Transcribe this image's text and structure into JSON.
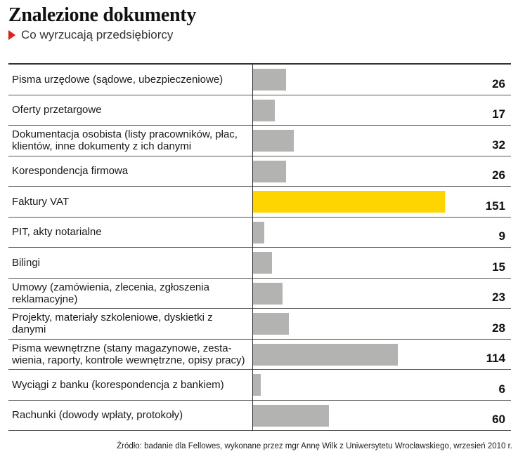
{
  "title": "Znalezione dokumenty",
  "subtitle": "Co wyrzucają przedsiębiorcy",
  "source": "Źródło: badanie dla Fellowes, wykonane przez mgr Annę Wilk z Uniwersytetu Wrocławskiego, wrzesień 2010 r.",
  "colors": {
    "bar": "#b3b3b1",
    "highlight": "#ffd500",
    "marker": "#e0201b"
  },
  "chart_data": {
    "type": "bar",
    "orientation": "horizontal",
    "title": "Znalezione dokumenty",
    "subtitle": "Co wyrzucają przedsiębiorcy",
    "categories": [
      "Pisma urzędowe (sądowe, ubezpieczeniowe)",
      "Oferty przetargowe",
      "Dokumentacja osobista (listy pracowników, płac, klientów, inne dokumenty z ich danymi",
      "Korespondencja firmowa",
      "Faktury VAT",
      "PIT, akty notarialne",
      "Bilingi",
      "Umowy (zamówienia, zlecenia, zgłoszenia reklamacyjne)",
      "Projekty, materiały szkoleniowe, dyskietki z danymi",
      "Pisma wewnętrzne (stany magazynowe, zestawienia, raporty, kontrole wewnętrzne, opisy pracy)",
      "Wyciągi z banku (korespondencja z bankiem)",
      "Rachunki (dowody wpłaty, protokoły)"
    ],
    "values": [
      26,
      17,
      32,
      26,
      151,
      9,
      15,
      23,
      28,
      114,
      6,
      60
    ],
    "highlight_index": 4,
    "xlim": [
      0,
      151
    ]
  },
  "rows": [
    {
      "label": "Pisma urzędowe (sądowe, ubezpieczeniowe)",
      "value": "26"
    },
    {
      "label": "Oferty przetargowe",
      "value": "17"
    },
    {
      "label": "Dokumentacja osobista (listy pracowników, płac, klientów, inne dokumenty z ich danymi",
      "value": "32"
    },
    {
      "label": "Korespondencja firmowa",
      "value": "26"
    },
    {
      "label": "Faktury VAT",
      "value": "151"
    },
    {
      "label": "PIT, akty notarialne",
      "value": "9"
    },
    {
      "label": "Bilingi",
      "value": "15"
    },
    {
      "label": "Umowy (zamówienia, zlecenia, zgłoszenia reklamacyjne)",
      "value": "23"
    },
    {
      "label": "Projekty, materiały szkoleniowe, dyskietki z danymi",
      "value": "28"
    },
    {
      "label": "Pisma wewnętrzne (stany magazynowe, zesta-wienia, raporty, kontrole wewnętrzne, opisy pracy)",
      "value": "114"
    },
    {
      "label": "Wyciągi z banku (korespondencja z bankiem)",
      "value": "6"
    },
    {
      "label": "Rachunki (dowody wpłaty, protokoły)",
      "value": "60"
    }
  ]
}
